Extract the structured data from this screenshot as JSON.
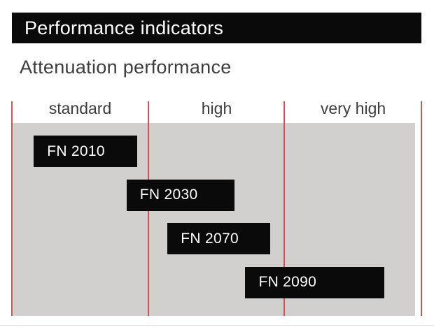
{
  "header": {
    "title": "Performance indicators"
  },
  "subtitle": "Attenuation performance",
  "chart_data": {
    "type": "bar",
    "variant": "horizontal-range-chart",
    "title": "Attenuation performance",
    "xlabel": "",
    "ylabel": "",
    "categories": [
      "standard",
      "high",
      "very high"
    ],
    "x_axis_units": "attenuation level columns (0 = start of standard, 3 = end of very high)",
    "xlim": [
      0,
      3
    ],
    "grid": "red column separator lines at 0, 1, 2, 3",
    "legend": false,
    "series": [
      {
        "name": "FN 2010",
        "range_columns": [
          0.16,
          0.92
        ],
        "category_span": "standard"
      },
      {
        "name": "FN 2030",
        "range_columns": [
          0.84,
          1.63
        ],
        "category_span": "standard to high"
      },
      {
        "name": "FN 2070",
        "range_columns": [
          1.14,
          1.89
        ],
        "category_span": "high"
      },
      {
        "name": "FN 2090",
        "range_columns": [
          1.71,
          2.73
        ],
        "category_span": "high to very high"
      }
    ]
  },
  "colors": {
    "title_bg": "#0a0a0a",
    "title_fg": "#ffffff",
    "plot_bg": "#d1d0ce",
    "separator_red": "#d05358",
    "bar_black": "#0a0a0a",
    "bar_label_fg": "#ffffff",
    "text_dark": "#3d3d3d"
  }
}
